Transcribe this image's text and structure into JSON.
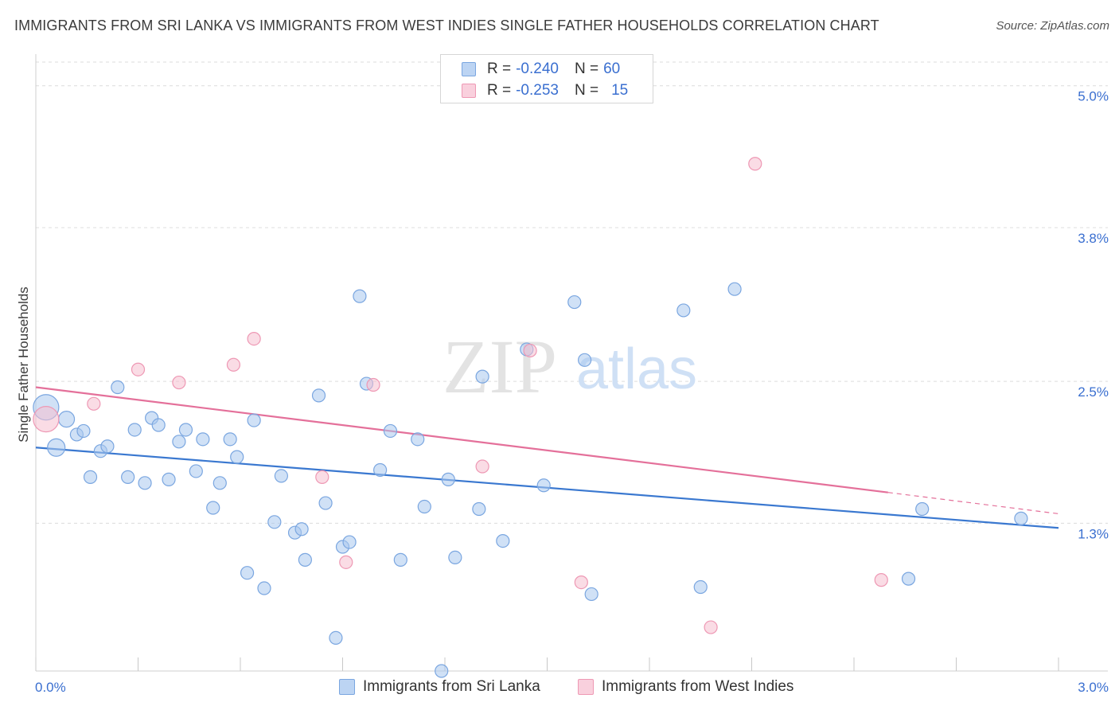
{
  "title": "IMMIGRANTS FROM SRI LANKA VS IMMIGRANTS FROM WEST INDIES SINGLE FATHER HOUSEHOLDS CORRELATION CHART",
  "source": "Source: ZipAtlas.com",
  "watermark": {
    "zip": "ZIP",
    "atlas": "atlas"
  },
  "legend": {
    "r_label": "R = ",
    "n_label": "N = ",
    "rows": [
      {
        "r": "-0.240",
        "n": "60"
      },
      {
        "r": "-0.253",
        "n": "15"
      }
    ]
  },
  "bottom_legend": [
    "Immigrants from Sri Lanka",
    "Immigrants from West Indies"
  ],
  "colors": {
    "blue_fill": "#a9c8ef",
    "blue_stroke": "#7aa6e0",
    "blue_line": "#3a78d0",
    "pink_fill": "#f6c0d0",
    "pink_stroke": "#ee98b4",
    "pink_line": "#e4709a",
    "tick_label": "#3a6fd0"
  },
  "chart_data": {
    "type": "scatter",
    "title": "IMMIGRANTS FROM SRI LANKA VS IMMIGRANTS FROM WEST INDIES SINGLE FATHER HOUSEHOLDS CORRELATION CHART",
    "xlabel": "",
    "ylabel": "Single Father Households",
    "xlim": [
      0,
      3.0
    ],
    "ylim": [
      0.05,
      5.2
    ],
    "x_tick_labels": [
      "0.0%",
      "3.0%"
    ],
    "y_ticks": [
      1.3,
      2.5,
      3.8,
      5.0
    ],
    "y_tick_labels": [
      "1.3%",
      "2.5%",
      "3.8%",
      "5.0%"
    ],
    "grid": true,
    "series": [
      {
        "name": "Immigrants from Sri Lanka",
        "color": "#a9c8ef",
        "points": [
          {
            "x": 0.03,
            "y": 2.28,
            "s": 16
          },
          {
            "x": 0.06,
            "y": 1.94,
            "s": 11
          },
          {
            "x": 0.09,
            "y": 2.18,
            "s": 10
          },
          {
            "x": 0.12,
            "y": 2.05
          },
          {
            "x": 0.14,
            "y": 2.08
          },
          {
            "x": 0.16,
            "y": 1.69
          },
          {
            "x": 0.19,
            "y": 1.91
          },
          {
            "x": 0.21,
            "y": 1.95
          },
          {
            "x": 0.24,
            "y": 2.45
          },
          {
            "x": 0.27,
            "y": 1.69
          },
          {
            "x": 0.29,
            "y": 2.09
          },
          {
            "x": 0.32,
            "y": 1.64
          },
          {
            "x": 0.34,
            "y": 2.19
          },
          {
            "x": 0.36,
            "y": 2.13
          },
          {
            "x": 0.39,
            "y": 1.67
          },
          {
            "x": 0.42,
            "y": 1.99
          },
          {
            "x": 0.44,
            "y": 2.09
          },
          {
            "x": 0.47,
            "y": 1.74
          },
          {
            "x": 0.49,
            "y": 2.01
          },
          {
            "x": 0.52,
            "y": 1.43
          },
          {
            "x": 0.54,
            "y": 1.64
          },
          {
            "x": 0.57,
            "y": 2.01
          },
          {
            "x": 0.59,
            "y": 1.86
          },
          {
            "x": 0.62,
            "y": 0.88
          },
          {
            "x": 0.64,
            "y": 2.17
          },
          {
            "x": 0.67,
            "y": 0.75
          },
          {
            "x": 0.7,
            "y": 1.31
          },
          {
            "x": 0.72,
            "y": 1.7
          },
          {
            "x": 0.76,
            "y": 1.22
          },
          {
            "x": 0.78,
            "y": 1.25
          },
          {
            "x": 0.79,
            "y": 0.99
          },
          {
            "x": 0.83,
            "y": 2.38
          },
          {
            "x": 0.85,
            "y": 1.47
          },
          {
            "x": 0.88,
            "y": 0.33
          },
          {
            "x": 0.9,
            "y": 1.1
          },
          {
            "x": 0.92,
            "y": 1.14
          },
          {
            "x": 0.95,
            "y": 3.22
          },
          {
            "x": 0.97,
            "y": 2.48
          },
          {
            "x": 1.01,
            "y": 1.75
          },
          {
            "x": 1.04,
            "y": 2.08
          },
          {
            "x": 1.07,
            "y": 0.99
          },
          {
            "x": 1.12,
            "y": 2.01
          },
          {
            "x": 1.14,
            "y": 1.44
          },
          {
            "x": 1.19,
            "y": 0.05
          },
          {
            "x": 1.21,
            "y": 1.67
          },
          {
            "x": 1.23,
            "y": 1.01
          },
          {
            "x": 1.3,
            "y": 1.42
          },
          {
            "x": 1.31,
            "y": 2.54
          },
          {
            "x": 1.37,
            "y": 1.15
          },
          {
            "x": 1.44,
            "y": 2.77
          },
          {
            "x": 1.49,
            "y": 1.62
          },
          {
            "x": 1.58,
            "y": 3.17
          },
          {
            "x": 1.61,
            "y": 2.68
          },
          {
            "x": 1.63,
            "y": 0.7
          },
          {
            "x": 1.9,
            "y": 3.1
          },
          {
            "x": 1.95,
            "y": 0.76
          },
          {
            "x": 2.05,
            "y": 3.28
          },
          {
            "x": 2.56,
            "y": 0.83
          },
          {
            "x": 2.6,
            "y": 1.42
          },
          {
            "x": 2.89,
            "y": 1.34
          }
        ],
        "trendline": {
          "x0": 0.0,
          "y0": 1.94,
          "x1": 3.0,
          "y1": 1.26
        }
      },
      {
        "name": "Immigrants from West Indies",
        "color": "#f6c0d0",
        "points": [
          {
            "x": 0.03,
            "y": 2.18,
            "s": 16
          },
          {
            "x": 0.17,
            "y": 2.31
          },
          {
            "x": 0.3,
            "y": 2.6
          },
          {
            "x": 0.42,
            "y": 2.49
          },
          {
            "x": 0.58,
            "y": 2.64
          },
          {
            "x": 0.64,
            "y": 2.86
          },
          {
            "x": 0.84,
            "y": 1.69
          },
          {
            "x": 0.91,
            "y": 0.97
          },
          {
            "x": 0.99,
            "y": 2.47
          },
          {
            "x": 1.31,
            "y": 1.78
          },
          {
            "x": 1.45,
            "y": 2.76
          },
          {
            "x": 1.6,
            "y": 0.8
          },
          {
            "x": 1.98,
            "y": 0.42
          },
          {
            "x": 2.11,
            "y": 4.34
          },
          {
            "x": 2.48,
            "y": 0.82
          }
        ],
        "trendline": {
          "x0": 0.0,
          "y0": 2.45,
          "x1": 2.5,
          "y1": 1.56,
          "dash_to_x": 3.0,
          "dash_to_y": 1.38
        }
      }
    ]
  }
}
